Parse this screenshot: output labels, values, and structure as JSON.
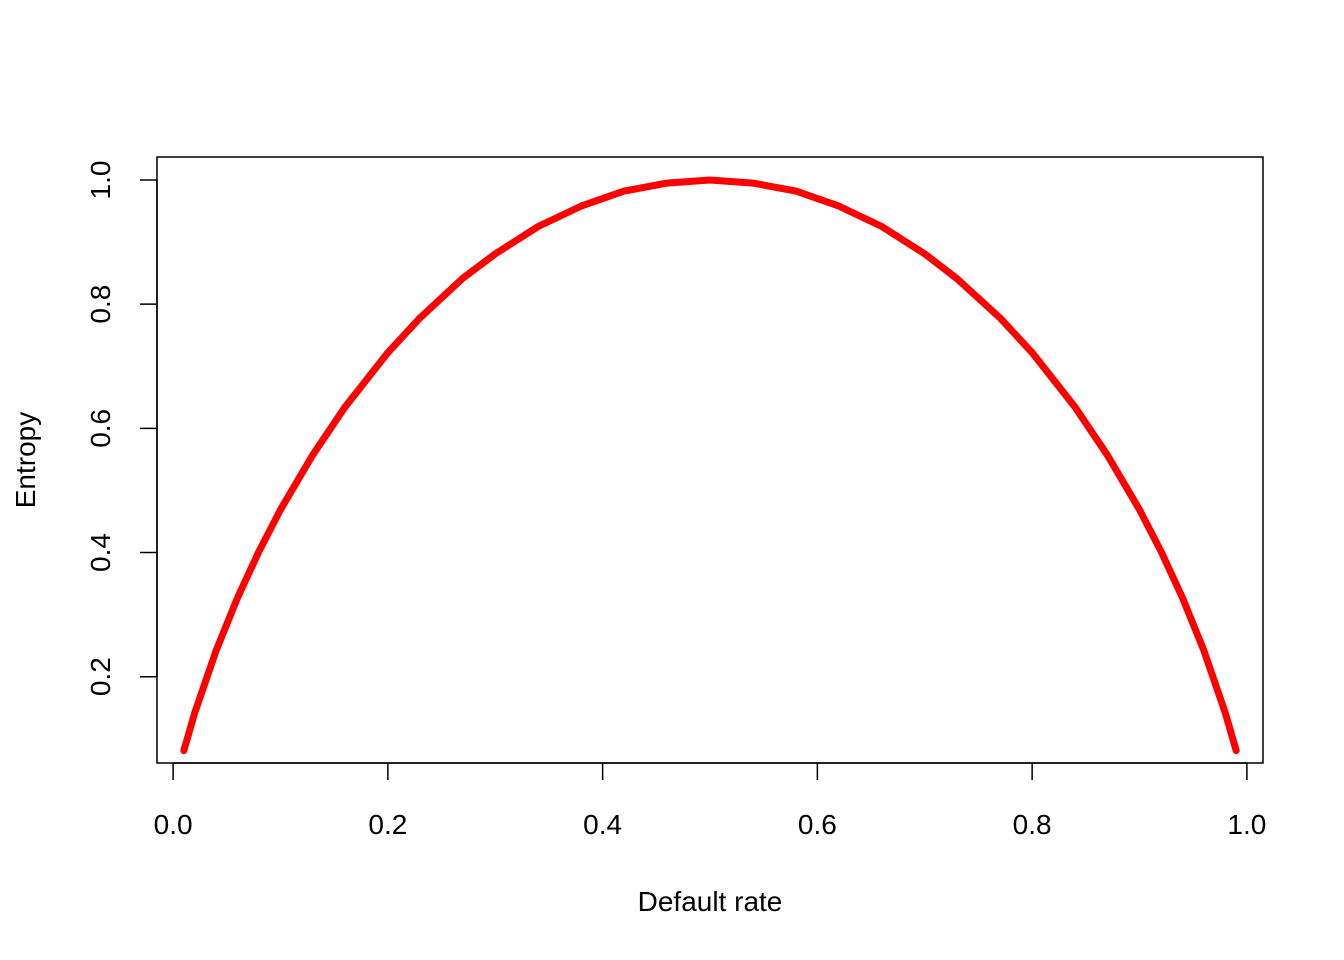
{
  "chart_data": {
    "type": "line",
    "title": "",
    "xlabel": "Default rate",
    "ylabel": "Entropy",
    "xlim": [
      -0.015,
      1.015
    ],
    "ylim": [
      0.061,
      1.037
    ],
    "xticks": [
      0.0,
      0.2,
      0.4,
      0.6,
      0.8,
      1.0
    ],
    "xtick_labels": [
      "0.0",
      "0.2",
      "0.4",
      "0.6",
      "0.8",
      "1.0"
    ],
    "yticks": [
      0.2,
      0.4,
      0.6,
      0.8,
      1.0
    ],
    "ytick_labels": [
      "0.2",
      "0.4",
      "0.6",
      "0.8",
      "1.0"
    ],
    "grid": false,
    "legend": "none",
    "series": [
      {
        "color": "#ff0000",
        "x": [
          0.01,
          0.02,
          0.04,
          0.06,
          0.08,
          0.1,
          0.13,
          0.16,
          0.2,
          0.23,
          0.27,
          0.3,
          0.34,
          0.38,
          0.42,
          0.46,
          0.5,
          0.54,
          0.58,
          0.62,
          0.66,
          0.7,
          0.73,
          0.77,
          0.8,
          0.84,
          0.87,
          0.9,
          0.92,
          0.94,
          0.96,
          0.98,
          0.99
        ],
        "y": [
          0.081,
          0.141,
          0.242,
          0.327,
          0.402,
          0.469,
          0.557,
          0.634,
          0.722,
          0.778,
          0.842,
          0.881,
          0.925,
          0.958,
          0.982,
          0.995,
          1.0,
          0.995,
          0.982,
          0.958,
          0.925,
          0.881,
          0.841,
          0.778,
          0.722,
          0.634,
          0.557,
          0.469,
          0.402,
          0.327,
          0.242,
          0.141,
          0.081
        ]
      }
    ]
  }
}
